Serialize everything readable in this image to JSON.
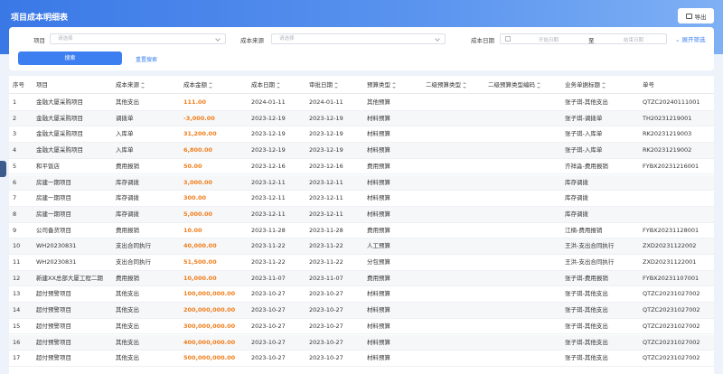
{
  "header": {
    "title": "项目成本明细表",
    "export": "导出"
  },
  "filters": {
    "project_label": "项目",
    "project_placeholder": "请选择",
    "source_label": "成本来源",
    "source_placeholder": "请选择",
    "date_label": "成本日期",
    "date_start": "开始日期",
    "date_sep": "至",
    "date_end": "结束日期",
    "expand": "展开筛选",
    "search": "搜索",
    "reset": "重置搜索"
  },
  "table": {
    "columns": [
      "序号",
      "项目",
      "成本来源",
      "成本金额",
      "成本日期",
      "审批日期",
      "预算类型",
      "二级预算类型",
      "二级预算类型编码",
      "业务单据标题",
      "单号"
    ],
    "rows": [
      {
        "no": "1",
        "project": "金融大厦采购项目",
        "source": "其他支出",
        "amount": "111.00",
        "cost_date": "2024-01-11",
        "approve_date": "2024-01-11",
        "budget_type": "其他预算",
        "title": "张子琪-其他支出",
        "number": "QTZC20240111001"
      },
      {
        "no": "2",
        "project": "金融大厦采购项目",
        "source": "调拨单",
        "amount": "-3,000.00",
        "cost_date": "2023-12-19",
        "approve_date": "2023-12-19",
        "budget_type": "材料预算",
        "title": "张子琪-调拨单",
        "number": "TH20231219001"
      },
      {
        "no": "3",
        "project": "金融大厦采购项目",
        "source": "入库单",
        "amount": "31,200.00",
        "cost_date": "2023-12-19",
        "approve_date": "2023-12-19",
        "budget_type": "材料预算",
        "title": "张子琪-入库单",
        "number": "RK20231219003"
      },
      {
        "no": "4",
        "project": "金融大厦采购项目",
        "source": "入库单",
        "amount": "6,800.00",
        "cost_date": "2023-12-19",
        "approve_date": "2023-12-19",
        "budget_type": "材料预算",
        "title": "张子琪-入库单",
        "number": "RK20231219002"
      },
      {
        "no": "5",
        "project": "和平饭店",
        "source": "费用报销",
        "amount": "50.00",
        "cost_date": "2023-12-16",
        "approve_date": "2023-12-16",
        "budget_type": "费用预算",
        "title": "齐祥淼-费用报销",
        "number": "FYBX20231216001"
      },
      {
        "no": "6",
        "project": "房建一期项目",
        "source": "库存调拨",
        "amount": "3,000.00",
        "cost_date": "2023-12-11",
        "approve_date": "2023-12-11",
        "budget_type": "材料预算",
        "title": "库存调拨"
      },
      {
        "no": "7",
        "project": "房建一期项目",
        "source": "库存调拨",
        "amount": "300.00",
        "cost_date": "2023-12-11",
        "approve_date": "2023-12-11",
        "budget_type": "材料预算",
        "title": "库存调拨"
      },
      {
        "no": "8",
        "project": "房建一期项目",
        "source": "库存调拨",
        "amount": "5,000.00",
        "cost_date": "2023-12-11",
        "approve_date": "2023-12-11",
        "budget_type": "材料预算",
        "title": "库存调拨"
      },
      {
        "no": "9",
        "project": "公司备货项目",
        "source": "费用报销",
        "amount": "10.00",
        "cost_date": "2023-11-28",
        "approve_date": "2023-11-28",
        "budget_type": "费用预算",
        "title": "江楠-费用报销",
        "number": "FYBX20231128001"
      },
      {
        "no": "10",
        "project": "WH20230831",
        "source": "支出合同执行",
        "amount": "40,000.00",
        "cost_date": "2023-11-22",
        "approve_date": "2023-11-22",
        "budget_type": "人工预算",
        "title": "王洪-支出合同执行",
        "number": "ZXD20231122002"
      },
      {
        "no": "11",
        "project": "WH20230831",
        "source": "支出合同执行",
        "amount": "51,500.00",
        "cost_date": "2023-11-22",
        "approve_date": "2023-11-22",
        "budget_type": "分包预算",
        "title": "王洪-支出合同执行",
        "number": "ZXD20231122001"
      },
      {
        "no": "12",
        "project": "新建XX总部大厦工程二期",
        "source": "费用报销",
        "amount": "10,000.00",
        "cost_date": "2023-11-07",
        "approve_date": "2023-11-07",
        "budget_type": "费用预算",
        "title": "张子琪-费用报销",
        "number": "FYBX20231107001"
      },
      {
        "no": "13",
        "project": "超付预警项目",
        "source": "其他支出",
        "amount": "100,000,000.00",
        "cost_date": "2023-10-27",
        "approve_date": "2023-10-27",
        "budget_type": "材料预算",
        "title": "张子琪-其他支出",
        "number": "QTZC20231027002"
      },
      {
        "no": "14",
        "project": "超付预警项目",
        "source": "其他支出",
        "amount": "200,000,000.00",
        "cost_date": "2023-10-27",
        "approve_date": "2023-10-27",
        "budget_type": "材料预算",
        "title": "张子琪-其他支出",
        "number": "QTZC20231027002"
      },
      {
        "no": "15",
        "project": "超付预警项目",
        "source": "其他支出",
        "amount": "300,000,000.00",
        "cost_date": "2023-10-27",
        "approve_date": "2023-10-27",
        "budget_type": "材料预算",
        "title": "张子琪-其他支出",
        "number": "QTZC20231027002"
      },
      {
        "no": "16",
        "project": "超付预警项目",
        "source": "其他支出",
        "amount": "400,000,000.00",
        "cost_date": "2023-10-27",
        "approve_date": "2023-10-27",
        "budget_type": "材料预算",
        "title": "张子琪-其他支出",
        "number": "QTZC20231027002"
      },
      {
        "no": "17",
        "project": "超付预警项目",
        "source": "其他支出",
        "amount": "500,000,000.00",
        "cost_date": "2023-10-27",
        "approve_date": "2023-10-27",
        "budget_type": "材料预算",
        "title": "张子琪-其他支出",
        "number": "QTZC20231027002"
      }
    ]
  }
}
